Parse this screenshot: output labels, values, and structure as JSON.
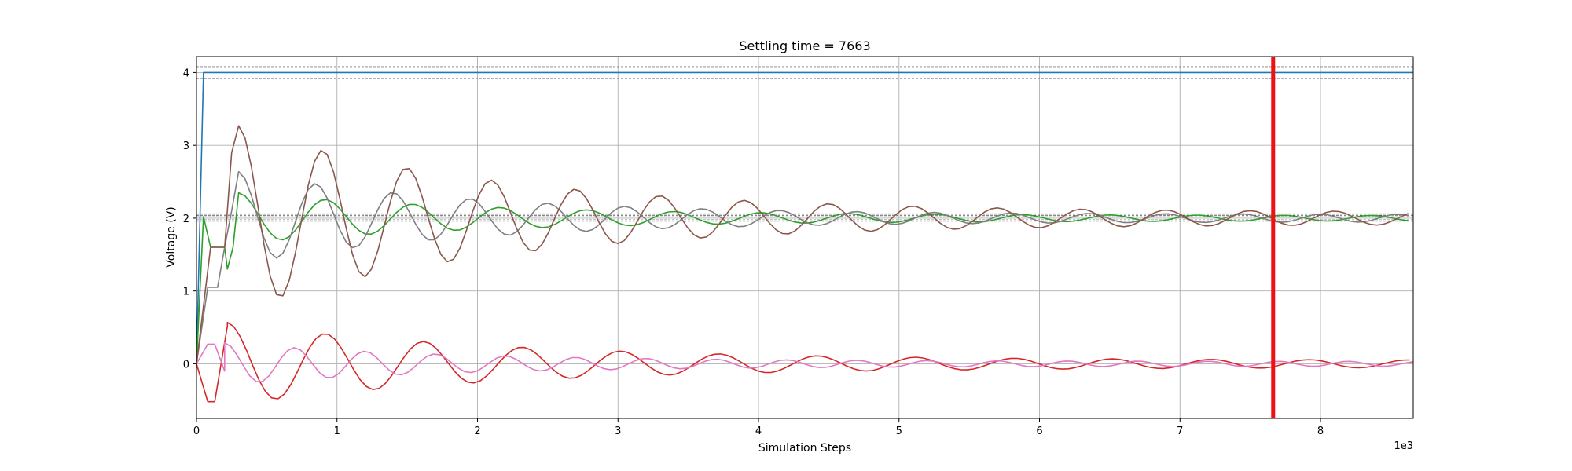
{
  "chart_data": {
    "type": "line",
    "title": "Settling time = 7663",
    "xlabel": "Simulation Steps",
    "ylabel": "Voltage (V)",
    "x_offset_label": "1e3",
    "xlim": [
      0,
      8.66
    ],
    "ylim": [
      -0.75,
      4.22
    ],
    "xticks": [
      0,
      1,
      2,
      3,
      4,
      5,
      6,
      7,
      8
    ],
    "yticks": [
      0,
      1,
      2,
      3,
      4
    ],
    "grid": true,
    "settling_marker": {
      "x": 7.663,
      "color": "#ee1111"
    },
    "tolerance_bands": [
      {
        "values": [
          4.08,
          3.92
        ],
        "color": "#808080"
      },
      {
        "values": [
          2.04,
          1.96
        ],
        "color": "#404040"
      },
      {
        "values": [
          2.06,
          2.02,
          1.98
        ],
        "color": "#a0a0a0"
      }
    ],
    "series": [
      {
        "color": "#1f77b4",
        "points": [
          [
            0,
            0
          ],
          [
            0.05,
            4.0
          ],
          [
            8.66,
            4.0
          ]
        ]
      },
      {
        "color": "#2ca02c",
        "kind": "oscillating",
        "target": 2.0,
        "amp": 0.33,
        "period": 0.62,
        "decay": 0.55,
        "step": 0.045,
        "start": [
          [
            0,
            0
          ],
          [
            0.05,
            2.02
          ],
          [
            0.1,
            1.6
          ],
          [
            0.2,
            1.6
          ],
          [
            0.22,
            1.3
          ],
          [
            0.26,
            1.6
          ]
        ],
        "from": 0.3
      },
      {
        "color": "#7f7f7f",
        "kind": "oscillating",
        "target": 2.0,
        "amp": 0.62,
        "period": 0.55,
        "decay": 0.6,
        "step": 0.045,
        "start": [
          [
            0,
            0
          ],
          [
            0.08,
            1.05
          ],
          [
            0.15,
            1.05
          ],
          [
            0.2,
            1.6
          ],
          [
            0.25,
            2.1
          ]
        ],
        "from": 0.3
      },
      {
        "color": "#8c564b",
        "kind": "oscillating",
        "target": 2.0,
        "amp": 1.25,
        "period": 0.6,
        "decay": 0.55,
        "step": 0.045,
        "start": [
          [
            0,
            0
          ],
          [
            0.1,
            1.6
          ],
          [
            0.2,
            1.6
          ],
          [
            0.25,
            2.9
          ]
        ],
        "from": 0.3
      },
      {
        "color": "#d62728",
        "kind": "oscillating",
        "target": 0.0,
        "amp": 0.55,
        "period": 0.7,
        "decay": 0.5,
        "step": 0.045,
        "start": [
          [
            0,
            0
          ],
          [
            0.08,
            -0.52
          ],
          [
            0.13,
            -0.52
          ],
          [
            0.22,
            0.52
          ]
        ],
        "from": 0.22
      },
      {
        "color": "#e377c2",
        "kind": "oscillating",
        "target": 0.0,
        "amp": 0.27,
        "period": 0.5,
        "decay": 0.6,
        "step": 0.045,
        "start": [
          [
            0,
            0
          ],
          [
            0.08,
            0.27
          ],
          [
            0.13,
            0.27
          ],
          [
            0.2,
            -0.1
          ]
        ],
        "from": 0.2
      }
    ]
  }
}
